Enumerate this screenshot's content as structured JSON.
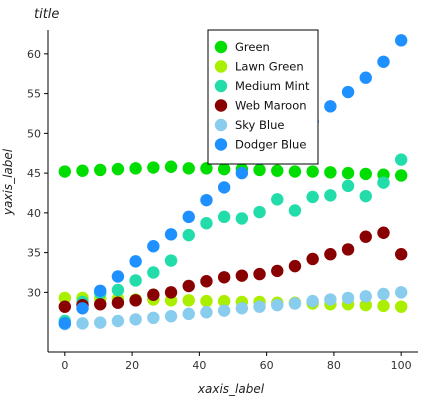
{
  "chart_data": {
    "type": "scatter",
    "title": "title",
    "xlabel": "xaxis_label",
    "ylabel": "yaxis_label",
    "xlim": [
      -5,
      105
    ],
    "ylim": [
      22.5,
      63
    ],
    "xticks": [
      0,
      20,
      40,
      60,
      80,
      100
    ],
    "yticks": [
      30,
      35,
      40,
      45,
      50,
      55,
      60
    ],
    "grid": false,
    "legend_position": "top-center",
    "x": [
      0,
      5.26,
      10.53,
      15.79,
      21.05,
      26.32,
      31.58,
      36.84,
      42.11,
      47.37,
      52.63,
      57.89,
      63.16,
      68.42,
      73.68,
      78.95,
      84.21,
      89.47,
      94.74,
      100
    ],
    "series": [
      {
        "name": "Green",
        "color": "#00dd00",
        "values": [
          45.2,
          45.3,
          45.4,
          45.5,
          45.6,
          45.7,
          45.8,
          45.6,
          45.6,
          45.5,
          45.5,
          45.4,
          45.3,
          45.2,
          45.2,
          45.1,
          45.0,
          44.9,
          44.8,
          44.7
        ]
      },
      {
        "name": "Lawn Green",
        "color": "#aaee00",
        "values": [
          29.3,
          29.3,
          29.2,
          29.2,
          29.1,
          29.1,
          29.0,
          29.0,
          28.9,
          28.9,
          28.8,
          28.8,
          28.7,
          28.7,
          28.6,
          28.5,
          28.5,
          28.4,
          28.3,
          28.2
        ]
      },
      {
        "name": "Medium Mint",
        "color": "#22ddaa",
        "values": [
          26.4,
          28.8,
          29.9,
          30.3,
          31.5,
          32.5,
          34.0,
          37.2,
          38.7,
          39.5,
          39.3,
          40.1,
          41.7,
          40.3,
          42.0,
          42.2,
          43.4,
          42.1,
          43.8,
          46.7
        ]
      },
      {
        "name": "Web Maroon",
        "color": "#880000",
        "values": [
          28.2,
          28.4,
          28.5,
          28.7,
          29.0,
          29.7,
          30.0,
          30.8,
          31.4,
          31.9,
          32.1,
          32.3,
          32.7,
          33.3,
          34.2,
          34.8,
          35.4,
          37.0,
          37.5,
          34.8
        ]
      },
      {
        "name": "Sky Blue",
        "color": "#88ccee",
        "values": [
          26.0,
          26.1,
          26.2,
          26.4,
          26.6,
          26.8,
          27.0,
          27.3,
          27.5,
          27.7,
          28.0,
          28.2,
          28.4,
          28.6,
          28.9,
          29.1,
          29.3,
          29.5,
          29.8,
          30.0
        ]
      },
      {
        "name": "Dodger Blue",
        "color": "#1e90ff",
        "values": [
          26.1,
          28.0,
          30.2,
          32.0,
          33.9,
          35.8,
          37.3,
          39.5,
          41.6,
          43.2,
          45.0,
          46.8,
          48.0,
          49.8,
          51.5,
          53.4,
          55.2,
          57.0,
          59.0,
          61.7
        ]
      }
    ]
  }
}
